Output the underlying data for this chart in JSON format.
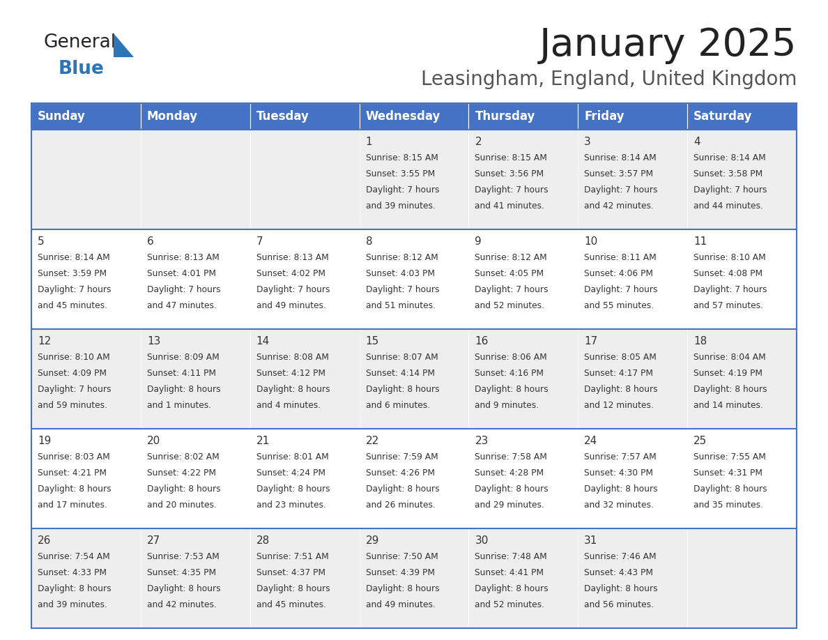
{
  "title": "January 2025",
  "subtitle": "Leasingham, England, United Kingdom",
  "header_bg": "#4472C4",
  "header_text_color": "#FFFFFF",
  "day_names": [
    "Sunday",
    "Monday",
    "Tuesday",
    "Wednesday",
    "Thursday",
    "Friday",
    "Saturday"
  ],
  "cell_bg_odd": "#EEEEEE",
  "cell_bg_even": "#FFFFFF",
  "cell_border_color": "#4472C4",
  "day_number_color": "#333333",
  "info_text_color": "#333333",
  "days": [
    {
      "day": 1,
      "col": 3,
      "row": 0,
      "sunrise": "8:15 AM",
      "sunset": "3:55 PM",
      "daylight_hours": 7,
      "daylight_minutes": 39
    },
    {
      "day": 2,
      "col": 4,
      "row": 0,
      "sunrise": "8:15 AM",
      "sunset": "3:56 PM",
      "daylight_hours": 7,
      "daylight_minutes": 41
    },
    {
      "day": 3,
      "col": 5,
      "row": 0,
      "sunrise": "8:14 AM",
      "sunset": "3:57 PM",
      "daylight_hours": 7,
      "daylight_minutes": 42
    },
    {
      "day": 4,
      "col": 6,
      "row": 0,
      "sunrise": "8:14 AM",
      "sunset": "3:58 PM",
      "daylight_hours": 7,
      "daylight_minutes": 44
    },
    {
      "day": 5,
      "col": 0,
      "row": 1,
      "sunrise": "8:14 AM",
      "sunset": "3:59 PM",
      "daylight_hours": 7,
      "daylight_minutes": 45
    },
    {
      "day": 6,
      "col": 1,
      "row": 1,
      "sunrise": "8:13 AM",
      "sunset": "4:01 PM",
      "daylight_hours": 7,
      "daylight_minutes": 47
    },
    {
      "day": 7,
      "col": 2,
      "row": 1,
      "sunrise": "8:13 AM",
      "sunset": "4:02 PM",
      "daylight_hours": 7,
      "daylight_minutes": 49
    },
    {
      "day": 8,
      "col": 3,
      "row": 1,
      "sunrise": "8:12 AM",
      "sunset": "4:03 PM",
      "daylight_hours": 7,
      "daylight_minutes": 51
    },
    {
      "day": 9,
      "col": 4,
      "row": 1,
      "sunrise": "8:12 AM",
      "sunset": "4:05 PM",
      "daylight_hours": 7,
      "daylight_minutes": 52
    },
    {
      "day": 10,
      "col": 5,
      "row": 1,
      "sunrise": "8:11 AM",
      "sunset": "4:06 PM",
      "daylight_hours": 7,
      "daylight_minutes": 55
    },
    {
      "day": 11,
      "col": 6,
      "row": 1,
      "sunrise": "8:10 AM",
      "sunset": "4:08 PM",
      "daylight_hours": 7,
      "daylight_minutes": 57
    },
    {
      "day": 12,
      "col": 0,
      "row": 2,
      "sunrise": "8:10 AM",
      "sunset": "4:09 PM",
      "daylight_hours": 7,
      "daylight_minutes": 59
    },
    {
      "day": 13,
      "col": 1,
      "row": 2,
      "sunrise": "8:09 AM",
      "sunset": "4:11 PM",
      "daylight_hours": 8,
      "daylight_minutes": 1
    },
    {
      "day": 14,
      "col": 2,
      "row": 2,
      "sunrise": "8:08 AM",
      "sunset": "4:12 PM",
      "daylight_hours": 8,
      "daylight_minutes": 4
    },
    {
      "day": 15,
      "col": 3,
      "row": 2,
      "sunrise": "8:07 AM",
      "sunset": "4:14 PM",
      "daylight_hours": 8,
      "daylight_minutes": 6
    },
    {
      "day": 16,
      "col": 4,
      "row": 2,
      "sunrise": "8:06 AM",
      "sunset": "4:16 PM",
      "daylight_hours": 8,
      "daylight_minutes": 9
    },
    {
      "day": 17,
      "col": 5,
      "row": 2,
      "sunrise": "8:05 AM",
      "sunset": "4:17 PM",
      "daylight_hours": 8,
      "daylight_minutes": 12
    },
    {
      "day": 18,
      "col": 6,
      "row": 2,
      "sunrise": "8:04 AM",
      "sunset": "4:19 PM",
      "daylight_hours": 8,
      "daylight_minutes": 14
    },
    {
      "day": 19,
      "col": 0,
      "row": 3,
      "sunrise": "8:03 AM",
      "sunset": "4:21 PM",
      "daylight_hours": 8,
      "daylight_minutes": 17
    },
    {
      "day": 20,
      "col": 1,
      "row": 3,
      "sunrise": "8:02 AM",
      "sunset": "4:22 PM",
      "daylight_hours": 8,
      "daylight_minutes": 20
    },
    {
      "day": 21,
      "col": 2,
      "row": 3,
      "sunrise": "8:01 AM",
      "sunset": "4:24 PM",
      "daylight_hours": 8,
      "daylight_minutes": 23
    },
    {
      "day": 22,
      "col": 3,
      "row": 3,
      "sunrise": "7:59 AM",
      "sunset": "4:26 PM",
      "daylight_hours": 8,
      "daylight_minutes": 26
    },
    {
      "day": 23,
      "col": 4,
      "row": 3,
      "sunrise": "7:58 AM",
      "sunset": "4:28 PM",
      "daylight_hours": 8,
      "daylight_minutes": 29
    },
    {
      "day": 24,
      "col": 5,
      "row": 3,
      "sunrise": "7:57 AM",
      "sunset": "4:30 PM",
      "daylight_hours": 8,
      "daylight_minutes": 32
    },
    {
      "day": 25,
      "col": 6,
      "row": 3,
      "sunrise": "7:55 AM",
      "sunset": "4:31 PM",
      "daylight_hours": 8,
      "daylight_minutes": 35
    },
    {
      "day": 26,
      "col": 0,
      "row": 4,
      "sunrise": "7:54 AM",
      "sunset": "4:33 PM",
      "daylight_hours": 8,
      "daylight_minutes": 39
    },
    {
      "day": 27,
      "col": 1,
      "row": 4,
      "sunrise": "7:53 AM",
      "sunset": "4:35 PM",
      "daylight_hours": 8,
      "daylight_minutes": 42
    },
    {
      "day": 28,
      "col": 2,
      "row": 4,
      "sunrise": "7:51 AM",
      "sunset": "4:37 PM",
      "daylight_hours": 8,
      "daylight_minutes": 45
    },
    {
      "day": 29,
      "col": 3,
      "row": 4,
      "sunrise": "7:50 AM",
      "sunset": "4:39 PM",
      "daylight_hours": 8,
      "daylight_minutes": 49
    },
    {
      "day": 30,
      "col": 4,
      "row": 4,
      "sunrise": "7:48 AM",
      "sunset": "4:41 PM",
      "daylight_hours": 8,
      "daylight_minutes": 52
    },
    {
      "day": 31,
      "col": 5,
      "row": 4,
      "sunrise": "7:46 AM",
      "sunset": "4:43 PM",
      "daylight_hours": 8,
      "daylight_minutes": 56
    }
  ],
  "num_rows": 5,
  "num_cols": 7,
  "logo_general_color": "#222222",
  "logo_blue_color": "#2E75B6",
  "logo_triangle_color": "#2E75B6",
  "title_color": "#222222",
  "subtitle_color": "#555555",
  "title_fontsize": 40,
  "subtitle_fontsize": 20,
  "dayname_fontsize": 12,
  "daynum_fontsize": 11,
  "info_fontsize": 8.8
}
